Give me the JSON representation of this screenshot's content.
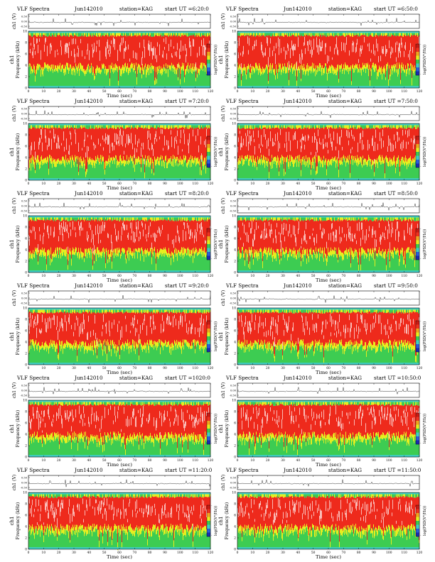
{
  "chart_data": [
    {
      "type": "heatmap",
      "title": "VLF Spectra",
      "date": "Jun142010",
      "station": "station=KAG",
      "start_ut": "start  UT  =6:20:0",
      "top_axis": {
        "label": "ch1 (V)",
        "ticks": [
          "0.50",
          "0.00",
          "-0.50"
        ]
      },
      "xlabel": "Time  (sec)",
      "xlim": [
        0,
        120
      ],
      "xticks": [
        "0",
        "10",
        "20",
        "30",
        "40",
        "50",
        "60",
        "70",
        "80",
        "90",
        "100",
        "110",
        "120"
      ],
      "ylabel": "ch1\nFrequency  (kHz)",
      "ylim": [
        0,
        10
      ],
      "yticks": [
        "0",
        "2",
        "4",
        "6",
        "8",
        "10"
      ],
      "colorbar_label": "log(PSD(V²/Hz))",
      "colorbar_ticks": [
        "-",
        "-"
      ]
    },
    {
      "type": "heatmap",
      "title": "VLF Spectra",
      "date": "Jun142010",
      "station": "station=KAG",
      "start_ut": "start  UT  =6:50:0",
      "top_axis": {
        "label": "ch1 (V)",
        "ticks": [
          "0.50",
          "0.00",
          "-0.50"
        ]
      },
      "xlabel": "Time  (sec)",
      "xlim": [
        0,
        120
      ],
      "xticks": [
        "0",
        "10",
        "20",
        "30",
        "40",
        "50",
        "60",
        "70",
        "80",
        "90",
        "100",
        "110",
        "120"
      ],
      "ylabel": "ch1\nFrequency  (kHz)",
      "ylim": [
        0,
        10
      ],
      "yticks": [
        "0",
        "2",
        "4",
        "6",
        "8",
        "10"
      ],
      "colorbar_label": "log(PSD(V²/Hz))",
      "colorbar_ticks": [
        "-",
        "-"
      ]
    },
    {
      "type": "heatmap",
      "title": "VLF Spectra",
      "date": "Jun142010",
      "station": "station=KAG",
      "start_ut": "start  UT  =7:20:0",
      "top_axis": {
        "label": "ch1 (V)",
        "ticks": [
          "0.50",
          "0.00",
          "-0.50"
        ]
      },
      "xlabel": "Time  (sec)",
      "xlim": [
        0,
        120
      ],
      "xticks": [
        "0",
        "10",
        "20",
        "30",
        "40",
        "50",
        "60",
        "70",
        "80",
        "90",
        "100",
        "110",
        "120"
      ],
      "ylabel": "ch1\nFrequency  (kHz)",
      "ylim": [
        0,
        10
      ],
      "yticks": [
        "0",
        "2",
        "4",
        "6",
        "8",
        "10"
      ],
      "colorbar_label": "log(PSD(V²/Hz))",
      "colorbar_ticks": [
        "-",
        "-"
      ]
    },
    {
      "type": "heatmap",
      "title": "VLF Spectra",
      "date": "Jun142010",
      "station": "station=KAG",
      "start_ut": "start  UT  =7:50:0",
      "top_axis": {
        "label": "ch1 (V)",
        "ticks": [
          "0.50",
          "0.00",
          "-0.50"
        ]
      },
      "xlabel": "Time  (sec)",
      "xlim": [
        0,
        120
      ],
      "xticks": [
        "0",
        "10",
        "20",
        "30",
        "40",
        "50",
        "60",
        "70",
        "80",
        "90",
        "100",
        "110",
        "120"
      ],
      "ylabel": "ch1\nFrequency  (kHz)",
      "ylim": [
        0,
        10
      ],
      "yticks": [
        "0",
        "2",
        "4",
        "6",
        "8",
        "10"
      ],
      "colorbar_label": "log(PSD(V²/Hz))",
      "colorbar_ticks": [
        "-",
        "-"
      ]
    },
    {
      "type": "heatmap",
      "title": "VLF Spectra",
      "date": "Jun142010",
      "station": "station=KAG",
      "start_ut": "start  UT  =8:20:0",
      "top_axis": {
        "label": "ch1 (V)",
        "ticks": [
          "0.50",
          "0.00",
          "-0.50"
        ]
      },
      "xlabel": "Time  (sec)",
      "xlim": [
        0,
        120
      ],
      "xticks": [
        "0",
        "10",
        "20",
        "30",
        "40",
        "50",
        "60",
        "70",
        "80",
        "90",
        "100",
        "110",
        "120"
      ],
      "ylabel": "ch1\nFrequency  (kHz)",
      "ylim": [
        0,
        10
      ],
      "yticks": [
        "0",
        "2",
        "4",
        "6",
        "8",
        "10"
      ],
      "colorbar_label": "log(PSD(V²/Hz))",
      "colorbar_ticks": [
        "-",
        "-"
      ]
    },
    {
      "type": "heatmap",
      "title": "VLF Spectra",
      "date": "Jun142010",
      "station": "station=KAG",
      "start_ut": "start  UT  =8:50:0",
      "top_axis": {
        "label": "ch1 (V)",
        "ticks": [
          "0.50",
          "0.00",
          "-0.50"
        ]
      },
      "xlabel": "Time  (sec)",
      "xlim": [
        0,
        120
      ],
      "xticks": [
        "0",
        "10",
        "20",
        "30",
        "40",
        "50",
        "60",
        "70",
        "80",
        "90",
        "100",
        "110",
        "120"
      ],
      "ylabel": "ch1\nFrequency  (kHz)",
      "ylim": [
        0,
        10
      ],
      "yticks": [
        "0",
        "2",
        "4",
        "6",
        "8",
        "10"
      ],
      "colorbar_label": "log(PSD(V²/Hz))",
      "colorbar_ticks": [
        "-",
        "-"
      ]
    },
    {
      "type": "heatmap",
      "title": "VLF Spectra",
      "date": "Jun142010",
      "station": "station=KAG",
      "start_ut": "start  UT  =9:20:0",
      "top_axis": {
        "label": "ch1 (V)",
        "ticks": [
          "0.50",
          "0.00",
          "-0.50"
        ]
      },
      "xlabel": "Time  (sec)",
      "xlim": [
        0,
        120
      ],
      "xticks": [
        "0",
        "10",
        "20",
        "30",
        "40",
        "50",
        "60",
        "70",
        "80",
        "90",
        "100",
        "110",
        "120"
      ],
      "ylabel": "ch1\nFrequency  (kHz)",
      "ylim": [
        0,
        10
      ],
      "yticks": [
        "0",
        "2",
        "4",
        "6",
        "8",
        "10"
      ],
      "colorbar_label": "log(PSD(V²/Hz))",
      "colorbar_ticks": [
        "-",
        "-"
      ]
    },
    {
      "type": "heatmap",
      "title": "VLF Spectra",
      "date": "Jun142010",
      "station": "station=KAG",
      "start_ut": "start  UT  =9:50:0",
      "top_axis": {
        "label": "ch1 (V)",
        "ticks": [
          "0.50",
          "0.00",
          "-0.50"
        ]
      },
      "xlabel": "Time  (sec)",
      "xlim": [
        0,
        120
      ],
      "xticks": [
        "0",
        "10",
        "20",
        "30",
        "40",
        "50",
        "60",
        "70",
        "80",
        "90",
        "100",
        "110",
        "120"
      ],
      "ylabel": "ch1\nFrequency  (kHz)",
      "ylim": [
        0,
        10
      ],
      "yticks": [
        "0",
        "2",
        "4",
        "6",
        "8",
        "10"
      ],
      "colorbar_label": "log(PSD(V²/Hz))",
      "colorbar_ticks": [
        "-",
        "-"
      ]
    },
    {
      "type": "heatmap",
      "title": "VLF Spectra",
      "date": "Jun142010",
      "station": "station=KAG",
      "start_ut": "start  UT  =1020:0",
      "top_axis": {
        "label": "ch1 (V)",
        "ticks": [
          "0.50",
          "0.00",
          "-0.50"
        ]
      },
      "xlabel": "Time  (sec)",
      "xlim": [
        0,
        120
      ],
      "xticks": [
        "0",
        "10",
        "20",
        "30",
        "40",
        "50",
        "60",
        "70",
        "80",
        "90",
        "100",
        "110",
        "120"
      ],
      "ylabel": "ch1\nFrequency  (kHz)",
      "ylim": [
        0,
        10
      ],
      "yticks": [
        "0",
        "2",
        "4",
        "6",
        "8",
        "10"
      ],
      "colorbar_label": "log(PSD(V²/Hz))",
      "colorbar_ticks": [
        "-",
        "-"
      ]
    },
    {
      "type": "heatmap",
      "title": "VLF Spectra",
      "date": "Jun142010",
      "station": "station=KAG",
      "start_ut": "start  UT  =10:50:0",
      "top_axis": {
        "label": "ch1 (V)",
        "ticks": [
          "0.50",
          "0.00",
          "-0.50"
        ]
      },
      "xlabel": "Time  (sec)",
      "xlim": [
        0,
        120
      ],
      "xticks": [
        "0",
        "10",
        "20",
        "30",
        "40",
        "50",
        "60",
        "70",
        "80",
        "90",
        "100",
        "110",
        "120"
      ],
      "ylabel": "ch1\nFrequency  (kHz)",
      "ylim": [
        0,
        10
      ],
      "yticks": [
        "0",
        "2",
        "4",
        "6",
        "8",
        "10"
      ],
      "colorbar_label": "log(PSD(V²/Hz))",
      "colorbar_ticks": [
        "-",
        "-"
      ]
    },
    {
      "type": "heatmap",
      "title": "VLF Spectra",
      "date": "Jun142010",
      "station": "station=KAG",
      "start_ut": "start  UT  =11:20:0",
      "top_axis": {
        "label": "ch1 (V)",
        "ticks": [
          "0.50",
          "0.00",
          "-0.50"
        ]
      },
      "xlabel": "Time  (sec)",
      "xlim": [
        0,
        120
      ],
      "xticks": [
        "0",
        "10",
        "20",
        "30",
        "40",
        "50",
        "60",
        "70",
        "80",
        "90",
        "100",
        "110",
        "120"
      ],
      "ylabel": "ch1\nFrequency  (kHz)",
      "ylim": [
        0,
        10
      ],
      "yticks": [
        "0",
        "2",
        "4",
        "6",
        "8",
        "10"
      ],
      "colorbar_label": "log(PSD(V²/Hz))",
      "colorbar_ticks": [
        "-",
        "-"
      ]
    },
    {
      "type": "heatmap",
      "title": "VLF Spectra",
      "date": "Jun142010",
      "station": "station=KAG",
      "start_ut": "start  UT  =11:50:0",
      "top_axis": {
        "label": "ch1 (V)",
        "ticks": [
          "0.50",
          "0.00",
          "-0.50"
        ]
      },
      "xlabel": "Time  (sec)",
      "xlim": [
        0,
        120
      ],
      "xticks": [
        "0",
        "10",
        "20",
        "30",
        "40",
        "50",
        "60",
        "70",
        "80",
        "90",
        "100",
        "110",
        "120"
      ],
      "ylabel": "ch1\nFrequency  (kHz)",
      "ylim": [
        0,
        10
      ],
      "yticks": [
        "0",
        "2",
        "4",
        "6",
        "8",
        "10"
      ],
      "colorbar_label": "log(PSD(V²/Hz))",
      "colorbar_ticks": [
        "-",
        "-"
      ]
    }
  ],
  "colors": {
    "spectrum_high": "#ee2a1c",
    "spectrum_peak": "#ffffff",
    "spectrum_mid": "#e6ee1f",
    "spectrum_low": "#3dcc52",
    "spectrum_floor": "#3fcdc4",
    "axis": "#000000"
  }
}
